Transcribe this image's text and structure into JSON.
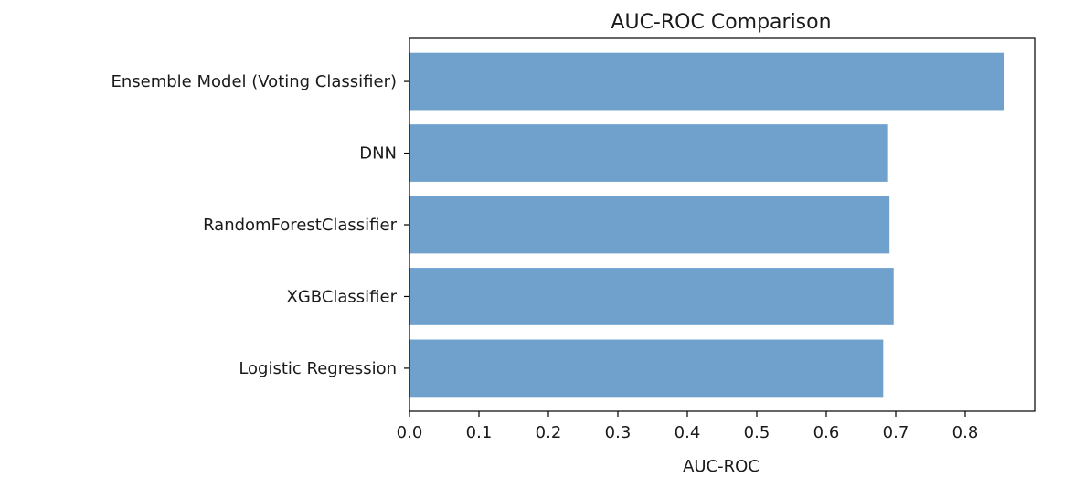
{
  "chart_data": {
    "type": "bar",
    "orientation": "horizontal",
    "title": "AUC-ROC Comparison",
    "xlabel": "AUC-ROC",
    "ylabel": "",
    "categories": [
      "Logistic Regression",
      "XGBClassifier",
      "RandomForestClassifier",
      "DNN",
      "Ensemble Model (Voting Classifier)"
    ],
    "values": [
      0.682,
      0.697,
      0.691,
      0.689,
      0.856
    ],
    "xlim": [
      0.0,
      0.9
    ],
    "xticks": [
      "0.0",
      "0.1",
      "0.2",
      "0.3",
      "0.4",
      "0.5",
      "0.6",
      "0.7",
      "0.8"
    ],
    "bar_color": "#6fa1cc",
    "grid": false,
    "legend": "none"
  }
}
